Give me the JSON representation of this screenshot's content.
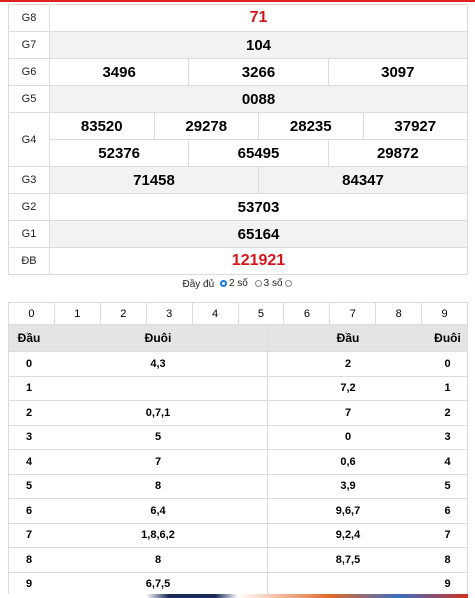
{
  "results": [
    {
      "label": "G8",
      "values": [
        [
          "71"
        ]
      ],
      "red": true,
      "shade": false
    },
    {
      "label": "G7",
      "values": [
        [
          "104"
        ]
      ],
      "red": false,
      "shade": true
    },
    {
      "label": "G6",
      "values": [
        [
          "3496",
          "3266",
          "3097"
        ]
      ],
      "red": false,
      "shade": false
    },
    {
      "label": "G5",
      "values": [
        [
          "0088"
        ]
      ],
      "red": false,
      "shade": true
    },
    {
      "label": "G4",
      "values": [
        [
          "83520",
          "29278",
          "28235",
          "37927"
        ],
        [
          "52376",
          "65495",
          "29872"
        ]
      ],
      "red": false,
      "shade": false
    },
    {
      "label": "G3",
      "values": [
        [
          "71458",
          "84347"
        ]
      ],
      "red": false,
      "shade": true
    },
    {
      "label": "G2",
      "values": [
        [
          "53703"
        ]
      ],
      "red": false,
      "shade": false
    },
    {
      "label": "G1",
      "values": [
        [
          "65164"
        ]
      ],
      "red": false,
      "shade": true
    },
    {
      "label": "ĐB",
      "values": [
        [
          "121921"
        ]
      ],
      "red": true,
      "shade": false
    }
  ],
  "options": {
    "label": "Đầy đủ",
    "items": [
      {
        "label": "2 số",
        "checked": true
      },
      {
        "label": "3 số",
        "checked": false
      }
    ]
  },
  "digits": [
    "0",
    "1",
    "2",
    "3",
    "4",
    "5",
    "6",
    "7",
    "8",
    "9"
  ],
  "loto": {
    "headers": [
      "Đầu",
      "Đuôi",
      "Đầu",
      "Đuôi"
    ],
    "rows": [
      [
        "0",
        "4,3",
        "2",
        "0"
      ],
      [
        "1",
        "",
        "7,2",
        "1"
      ],
      [
        "2",
        "0,7,1",
        "7",
        "2"
      ],
      [
        "3",
        "5",
        "0",
        "3"
      ],
      [
        "4",
        "7",
        "0,6",
        "4"
      ],
      [
        "5",
        "8",
        "3,9",
        "5"
      ],
      [
        "6",
        "6,4",
        "9,6,7",
        "6"
      ],
      [
        "7",
        "1,8,6,2",
        "9,2,4",
        "7"
      ],
      [
        "8",
        "8",
        "8,7,5",
        "8"
      ],
      [
        "9",
        "6,7,5",
        "",
        "9"
      ]
    ]
  },
  "colors": {
    "accent_red": "#d4151b",
    "radio_blue": "#1a73e8"
  }
}
